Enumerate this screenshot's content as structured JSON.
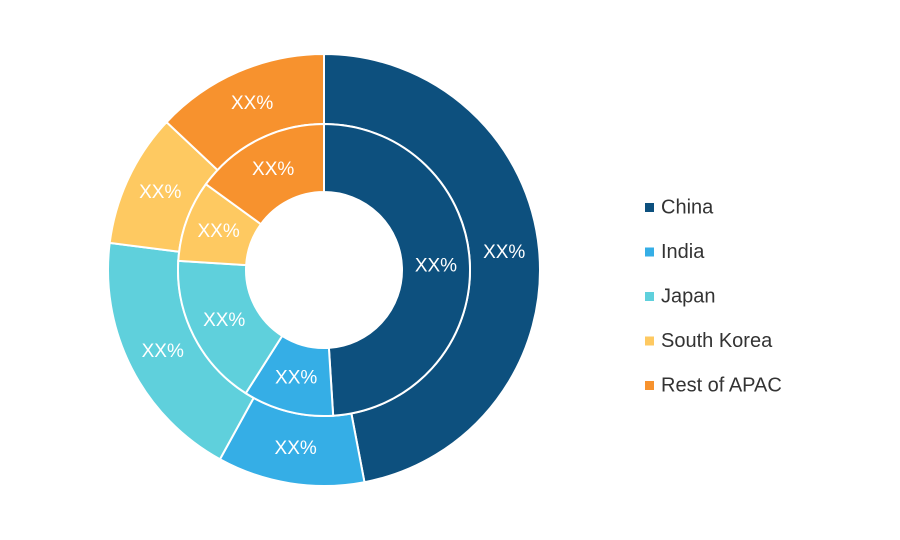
{
  "chart_data": {
    "type": "donut",
    "categories": [
      "China",
      "India",
      "Japan",
      "South Korea",
      "Rest of APAC"
    ],
    "colors": [
      "#0d507e",
      "#35aee6",
      "#5fd0dc",
      "#fec961",
      "#f7922e"
    ],
    "series": [
      {
        "values": [
          47,
          11,
          19,
          10,
          13
        ],
        "value_labels": [
          "XX%",
          "XX%",
          "XX%",
          "XX%",
          "XX%"
        ]
      },
      {
        "values": [
          49,
          10,
          17,
          9,
          15
        ],
        "value_labels": [
          "XX%",
          "XX%",
          "XX%",
          "XX%",
          "XX%"
        ]
      }
    ],
    "legend": "right"
  }
}
